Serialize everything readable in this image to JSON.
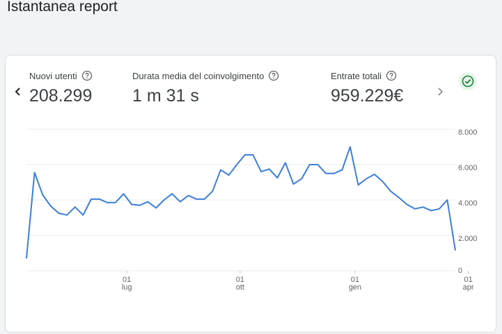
{
  "page": {
    "title": "Istantanea report"
  },
  "metrics": [
    {
      "label": "Nuovi utenti",
      "value": "208.299"
    },
    {
      "label": "Durata media del coinvolgimento",
      "value": "1 m 31 s"
    },
    {
      "label": "Entrate totali",
      "value": "959.229€"
    }
  ],
  "icons": {
    "prev": "chevron-left-icon",
    "next": "chevron-right-icon",
    "help": "help-circle-icon",
    "status": "check-circle-icon"
  },
  "colors": {
    "line": "#3b7ddb",
    "grid": "#e8eaed",
    "status": "#188038"
  },
  "chart_data": {
    "type": "line",
    "title": "",
    "xlabel": "",
    "ylabel": "",
    "ylim": [
      0,
      8000
    ],
    "y_ticks": [
      "8.000",
      "6.000",
      "4.000",
      "2.000",
      "0"
    ],
    "x_ticks": [
      {
        "day": "01",
        "month": "lug"
      },
      {
        "day": "01",
        "month": "ott"
      },
      {
        "day": "01",
        "month": "gen"
      },
      {
        "day": "01",
        "month": "apr"
      }
    ],
    "x_tick_index": [
      12.4,
      26.4,
      40.6,
      54.6
    ],
    "grid": true,
    "series": [
      {
        "name": "",
        "values": [
          700,
          5550,
          4300,
          3650,
          3250,
          3150,
          3600,
          3150,
          4050,
          4050,
          3850,
          3850,
          4350,
          3750,
          3700,
          3900,
          3550,
          4000,
          4350,
          3900,
          4250,
          4050,
          4050,
          4500,
          5700,
          5400,
          6000,
          6550,
          6550,
          5600,
          5750,
          5250,
          6100,
          4900,
          5200,
          6000,
          6000,
          5500,
          5500,
          5700,
          7000,
          4850,
          5200,
          5450,
          5050,
          4500,
          4150,
          3750,
          3500,
          3600,
          3400,
          3500,
          4000,
          1150
        ]
      }
    ]
  }
}
